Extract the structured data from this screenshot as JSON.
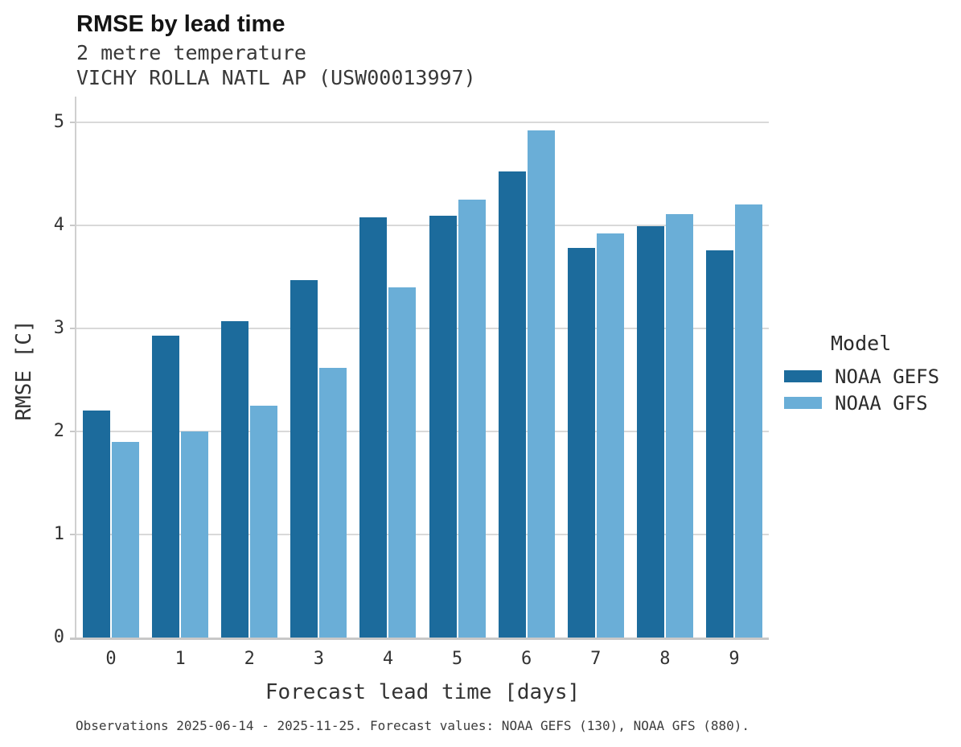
{
  "title": "RMSE by lead time",
  "subtitle_line1": "2 metre temperature",
  "subtitle_line2": "VICHY ROLLA NATL AP (USW00013997)",
  "footer": "Observations 2025-06-14 - 2025-11-25. Forecast values: NOAA GEFS (130), NOAA GFS (880).",
  "legend": {
    "title": "Model",
    "entries": [
      {
        "label": "NOAA GEFS",
        "color": "#1c6b9c"
      },
      {
        "label": "NOAA GFS",
        "color": "#6aaed7"
      }
    ]
  },
  "colors": {
    "gefs_bar": "#1c6b9c",
    "gfs_bar": "#6aaed7",
    "gridline": "#d9d9d9",
    "axis_line": "#c8c8c8",
    "text": "#333333"
  },
  "chart_data": {
    "type": "bar",
    "title": "RMSE by lead time",
    "subtitle": [
      "2 metre temperature",
      "VICHY ROLLA NATL AP (USW00013997)"
    ],
    "xlabel": "Forecast lead time [days]",
    "ylabel": "RMSE [C]",
    "categories": [
      "0",
      "1",
      "2",
      "3",
      "4",
      "5",
      "6",
      "7",
      "8",
      "9"
    ],
    "series": [
      {
        "name": "NOAA GEFS",
        "color": "#1c6b9c",
        "values": [
          2.2,
          2.93,
          3.07,
          3.47,
          4.08,
          4.09,
          4.52,
          3.78,
          3.99,
          3.76
        ]
      },
      {
        "name": "NOAA GFS",
        "color": "#6aaed7",
        "values": [
          1.9,
          2.0,
          2.25,
          2.62,
          3.4,
          4.25,
          4.92,
          3.92,
          4.11,
          4.2
        ]
      }
    ],
    "ylim": [
      0,
      5.25
    ],
    "yticks": [
      0,
      1,
      2,
      3,
      4,
      5
    ],
    "grid": true,
    "legend_title": "Model",
    "legend_position": "right",
    "caption": "Observations 2025-06-14 - 2025-11-25. Forecast values: NOAA GEFS (130), NOAA GFS (880)."
  }
}
